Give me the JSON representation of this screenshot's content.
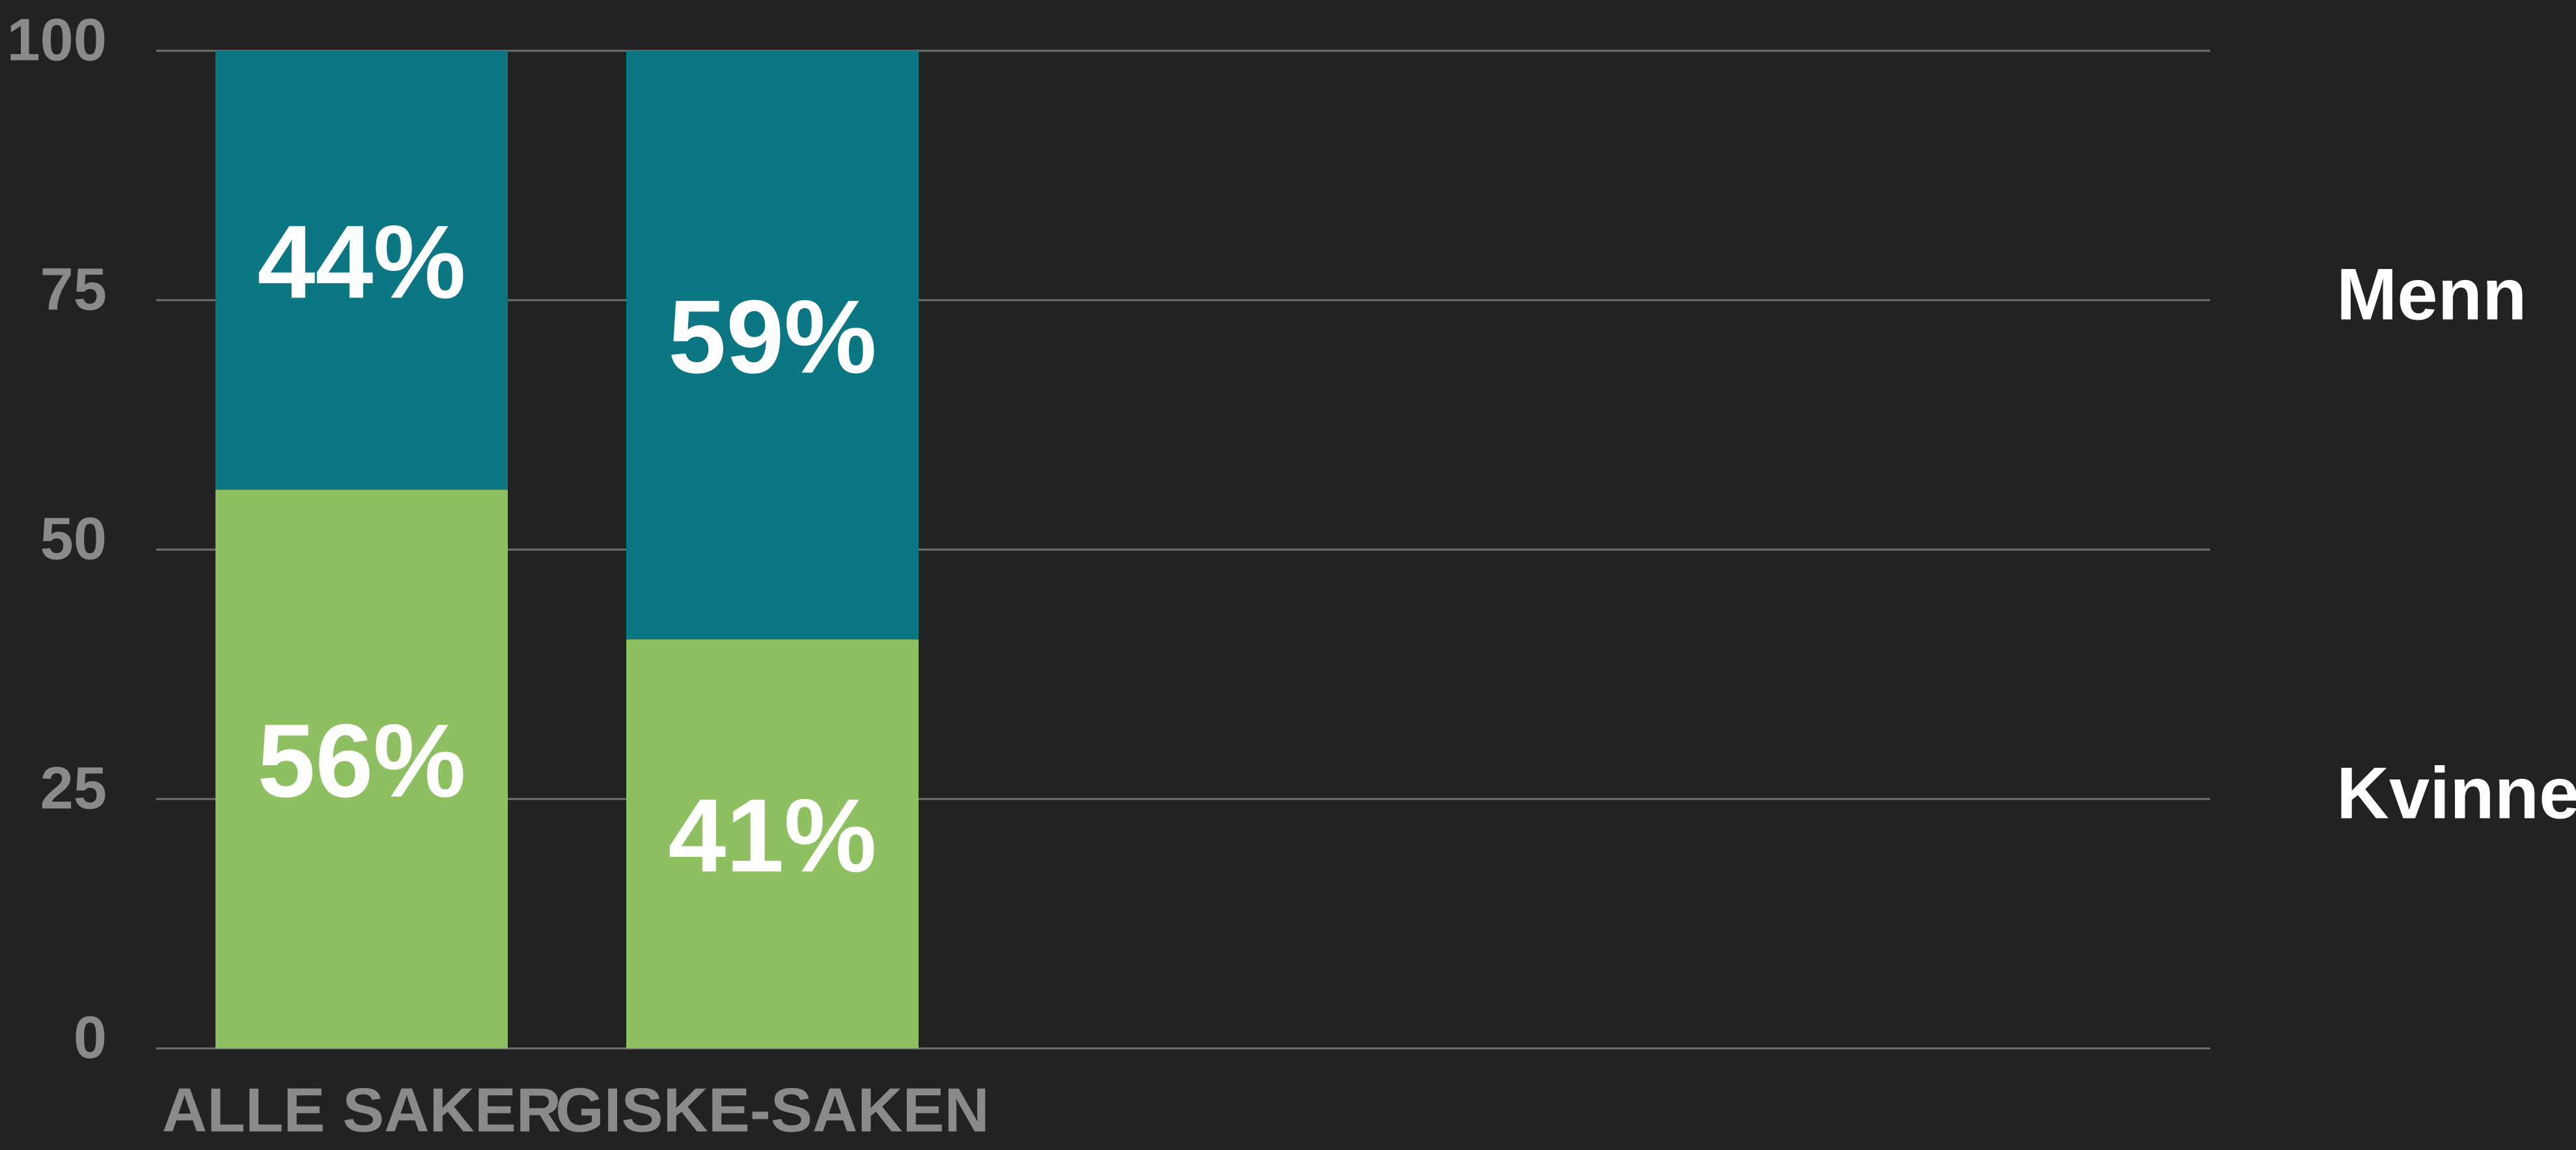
{
  "chart_data": {
    "type": "stacked_bar",
    "categories": [
      "ALLE SAKER",
      "GISKE-SAKEN"
    ],
    "series": [
      {
        "name": "Kvinner",
        "color": "#8ebf60",
        "values": [
          56,
          41
        ],
        "value_labels": [
          "56%",
          "41%"
        ]
      },
      {
        "name": "Menn",
        "color": "#0b7783",
        "values": [
          44,
          59
        ],
        "value_labels": [
          "44%",
          "59%"
        ]
      }
    ],
    "ylim": [
      0,
      100
    ],
    "yticks": [
      0,
      25,
      50,
      75,
      100
    ],
    "grid": true,
    "legend": "right"
  }
}
